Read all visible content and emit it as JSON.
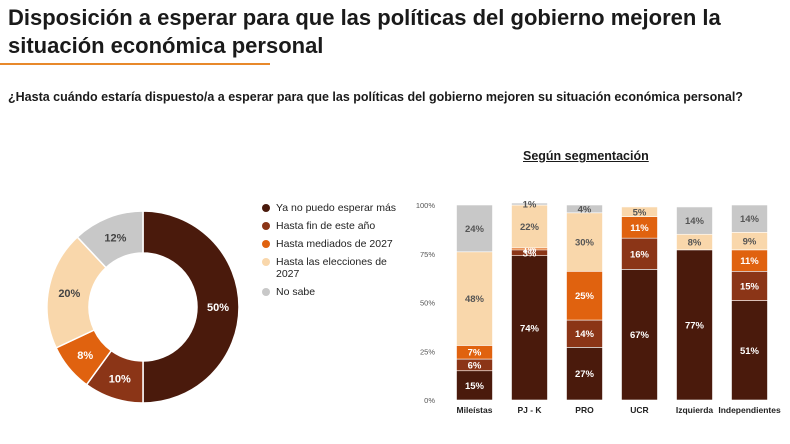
{
  "header": {
    "title": "Disposición a esperar para que las políticas del gobierno mejoren la situación económica personal",
    "question": "¿Hasta cuándo estaría dispuesto/a a esperar para que las políticas del gobierno mejoren su situación económica personal?",
    "segmentation_title": "Según segmentación"
  },
  "colors": {
    "Ya no puedo esperar más": "#4a1a0c",
    "Hasta fin de este año": "#8b3517",
    "Hasta mediados de 2027": "#e0620f",
    "Hasta las elecciones de 2027": "#f9d7ab",
    "No sabe": "#c8c8c8"
  },
  "chart_data": [
    {
      "type": "pie",
      "title": "",
      "labels": [
        "Ya no puedo esperar más",
        "Hasta fin de este año",
        "Hasta mediados de 2027",
        "Hasta las elecciones de 2027",
        "No sabe"
      ],
      "values": [
        50,
        10,
        8,
        20,
        12
      ],
      "value_labels": [
        "50%",
        "10%",
        "8%",
        "20%",
        "12%"
      ],
      "donut": true,
      "legend": "right"
    },
    {
      "type": "bar",
      "stacked": true,
      "title": "Según segmentación",
      "categories": [
        "Mileístas",
        "PJ - K",
        "PRO",
        "UCR",
        "Izquierda",
        "Independientes"
      ],
      "series": [
        {
          "name": "Ya no puedo esperar más",
          "values": [
            15,
            74,
            27,
            67,
            77,
            51
          ],
          "labels": [
            "15%",
            "74%",
            "27%",
            "67%",
            "77%",
            "51%"
          ]
        },
        {
          "name": "Hasta fin de este año",
          "values": [
            6,
            3,
            14,
            16,
            0,
            15
          ],
          "labels": [
            "6%",
            "3%",
            "14%",
            "16%",
            "",
            "15%"
          ]
        },
        {
          "name": "Hasta mediados de 2027",
          "values": [
            7,
            1,
            25,
            11,
            0,
            11
          ],
          "labels": [
            "7%",
            "1%",
            "25%",
            "11%",
            "",
            "11%"
          ]
        },
        {
          "name": "Hasta las elecciones de 2027",
          "values": [
            48,
            22,
            30,
            5,
            8,
            9
          ],
          "labels": [
            "48%",
            "22%",
            "30%",
            "5%",
            "8%",
            "9%"
          ]
        },
        {
          "name": "No sabe",
          "values": [
            24,
            1,
            4,
            0,
            14,
            14
          ],
          "labels": [
            "24%",
            "1%",
            "4%",
            "",
            "14%",
            "14%"
          ]
        }
      ],
      "ylim": [
        0,
        100
      ],
      "yticks": [
        "0%",
        "25%",
        "50%",
        "75%",
        "100%"
      ],
      "grid": false
    }
  ]
}
